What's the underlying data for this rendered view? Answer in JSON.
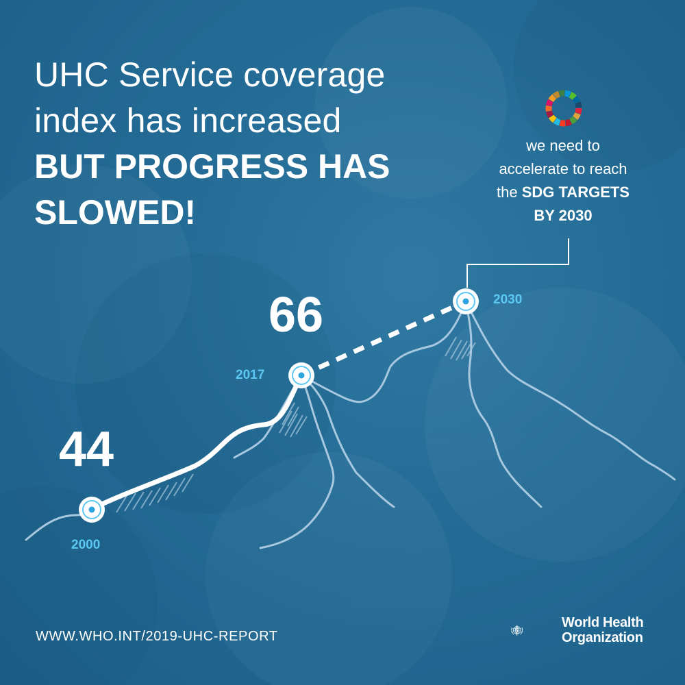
{
  "headline": {
    "line1": "UHC Service coverage",
    "line2": "index has increased",
    "line3": "BUT PROGRESS HAS",
    "line4": "SLOWED!"
  },
  "callout": {
    "line1": "we need to",
    "line2": "accelerate to reach",
    "line3_prefix": "the ",
    "line3_bold": "SDG TARGETS",
    "line4": "BY 2030"
  },
  "milestones": [
    {
      "year": "2000",
      "value": "44"
    },
    {
      "year": "2017",
      "value": "66"
    },
    {
      "year": "2030",
      "value": ""
    }
  ],
  "footer": {
    "url": "WWW.WHO.INT/2019-UHC-REPORT",
    "org_line1": "World Health",
    "org_line2": "Organization"
  },
  "colors": {
    "background": "#236b95",
    "year_label": "#5cc8f2",
    "ridge_line": "#a8c8df",
    "text": "#ffffff"
  },
  "icons": [
    "sdg-wheel-icon",
    "who-emblem-icon"
  ]
}
